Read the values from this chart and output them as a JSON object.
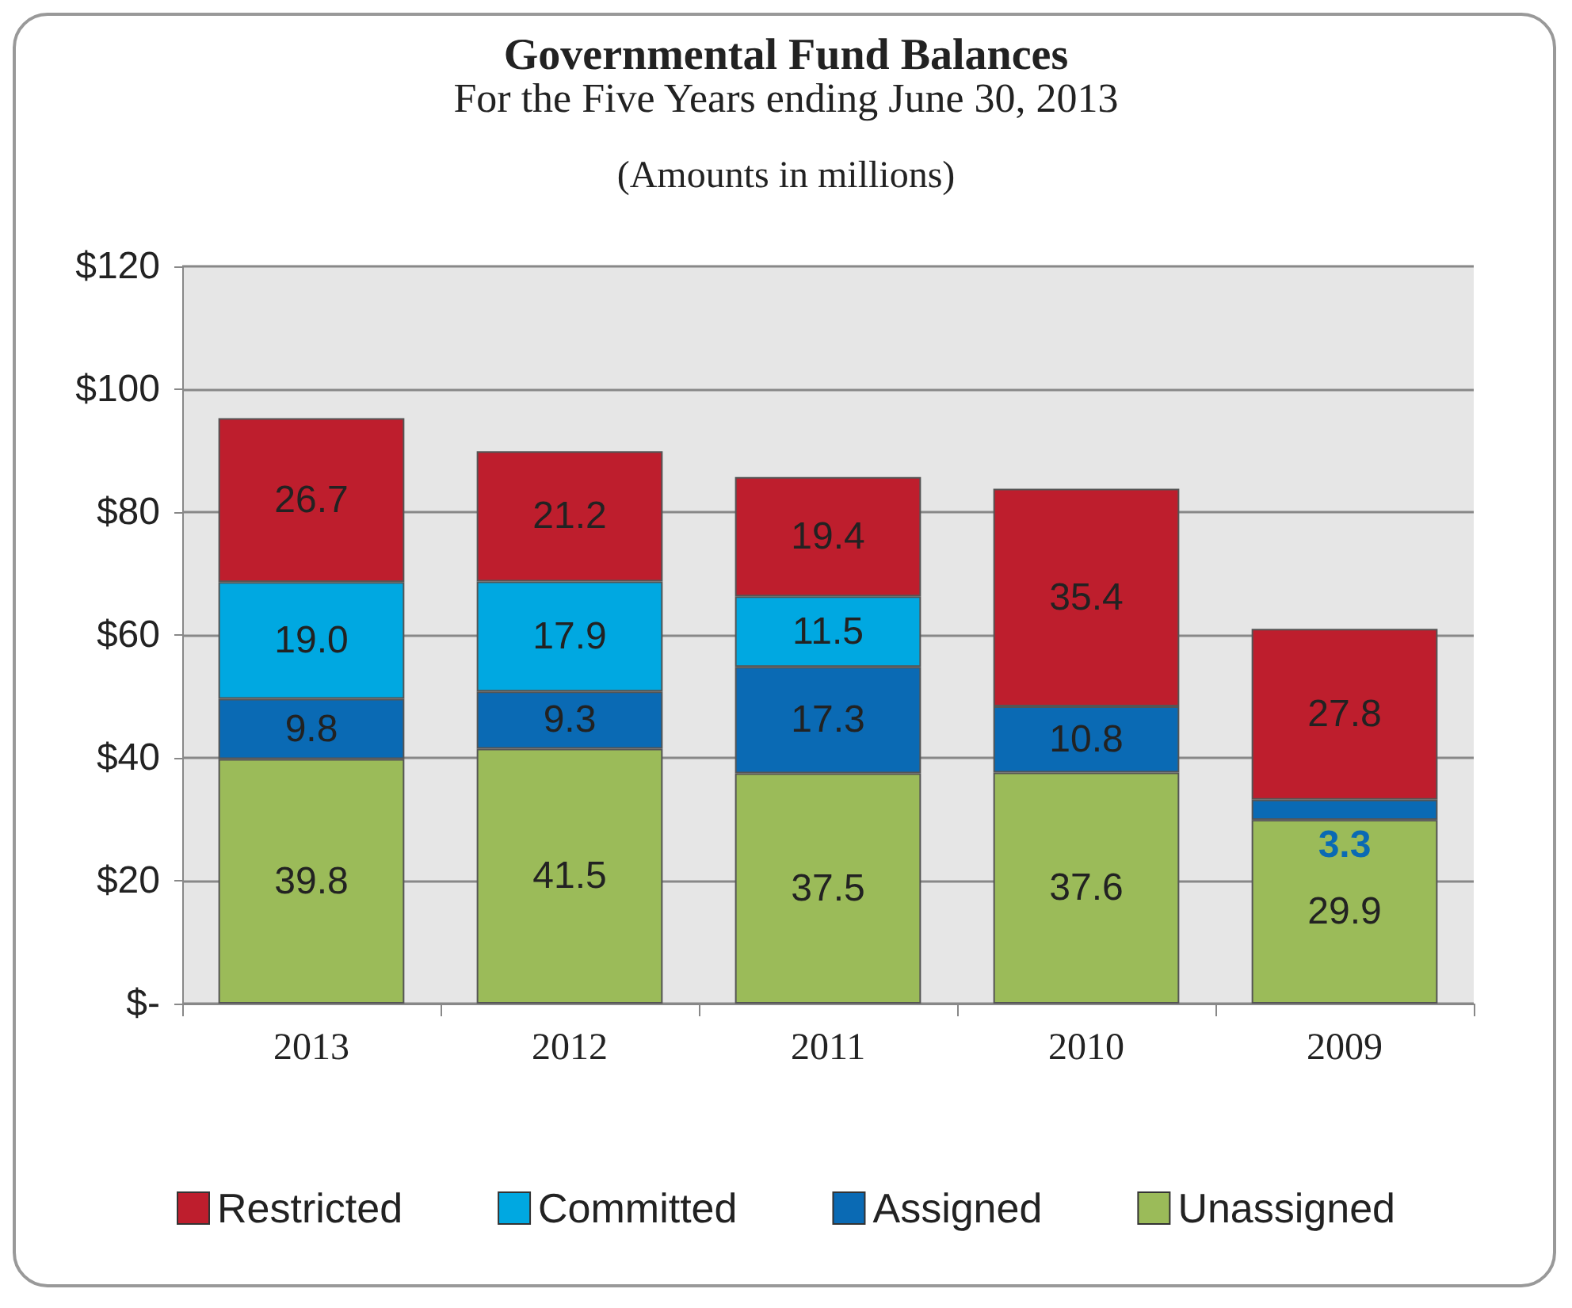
{
  "chart_data": {
    "type": "bar",
    "title": "Governmental Fund Balances",
    "subtitle": "For the Five Years ending June 30, 2013",
    "annotations": [
      "(Amounts in millions)"
    ],
    "categories": [
      "2013",
      "2012",
      "2011",
      "2010",
      "2009"
    ],
    "stacked": true,
    "series": [
      {
        "name": "Unassigned",
        "color": "#9bbb59",
        "values": [
          39.8,
          41.5,
          37.5,
          37.6,
          29.9
        ],
        "value_labels": [
          "39.8",
          "41.5",
          "37.5",
          "37.6",
          "29.9"
        ]
      },
      {
        "name": "Assigned",
        "color": "#0a6ab4",
        "values": [
          9.8,
          9.3,
          17.3,
          10.8,
          3.3
        ],
        "value_labels": [
          "9.8",
          "9.3",
          "17.3",
          "10.8",
          "3.3"
        ]
      },
      {
        "name": "Committed",
        "color": "#00a8e1",
        "values": [
          19.0,
          17.9,
          11.5,
          null,
          null
        ],
        "value_labels": [
          "19.0",
          "17.9",
          "11.5",
          null,
          null
        ]
      },
      {
        "name": "Restricted",
        "color": "#be1e2d",
        "values": [
          26.7,
          21.2,
          19.4,
          35.4,
          27.8
        ],
        "value_labels": [
          "26.7",
          "21.2",
          "19.4",
          "35.4",
          "27.8"
        ]
      }
    ],
    "ylim": [
      0,
      120
    ],
    "yticks": [
      {
        "value": 0,
        "label": "$-"
      },
      {
        "value": 20,
        "label": "$20"
      },
      {
        "value": 40,
        "label": "$40"
      },
      {
        "value": 60,
        "label": "$60"
      },
      {
        "value": 80,
        "label": "$80"
      },
      {
        "value": 100,
        "label": "$100"
      },
      {
        "value": 120,
        "label": "$120"
      }
    ],
    "grid": "y",
    "legend": "bottom"
  }
}
